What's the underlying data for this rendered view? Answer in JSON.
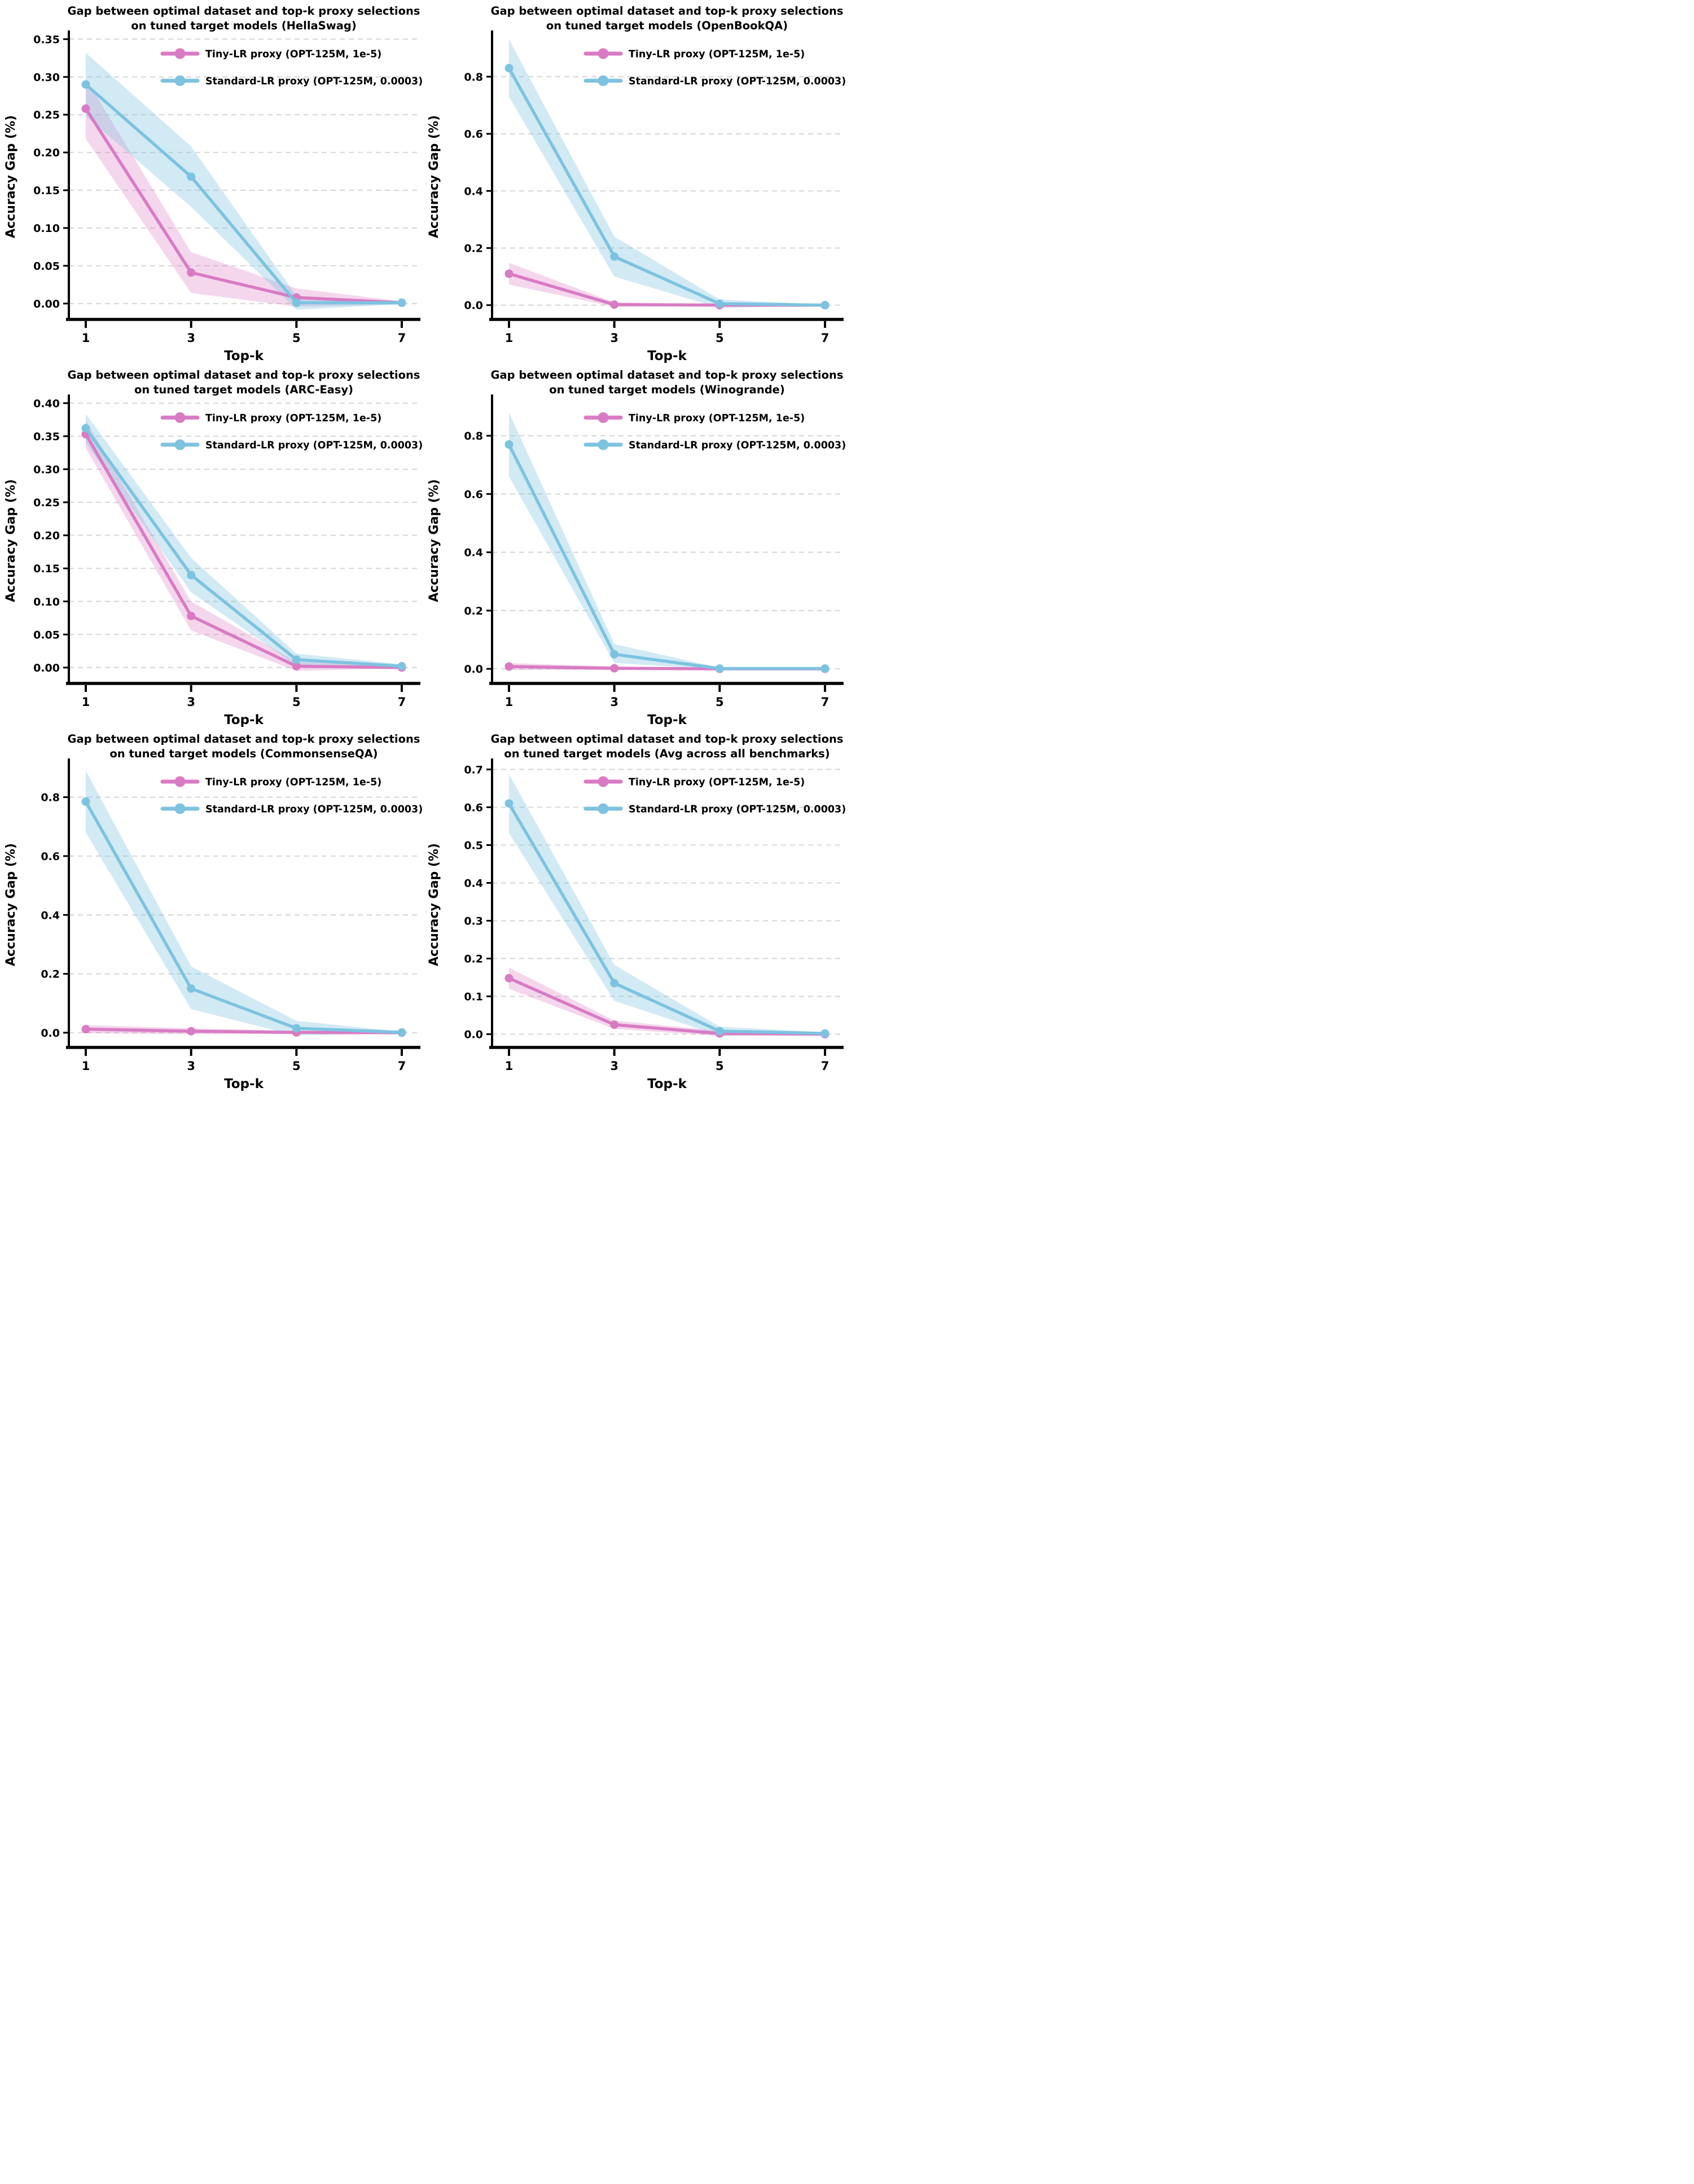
{
  "figure": {
    "background": "#ffffff",
    "x_axis_label": "Top-k",
    "y_axis_label": "Accuracy Gap (%)",
    "x_tick_labels": [
      "1",
      "3",
      "5",
      "7"
    ],
    "grid_color": "#d9d9d9",
    "text_color": "#000000",
    "legend": {
      "items": [
        {
          "label": "Tiny-LR proxy (OPT-125M, 1e-5)",
          "color": "#d97bc4"
        },
        {
          "label": "Standard-LR proxy (OPT-125M, 0.0003)",
          "color": "#7dc3e0"
        }
      ]
    }
  },
  "chart_data": [
    {
      "type": "line",
      "benchmark": "HellaSwag",
      "title": [
        "Gap between optimal dataset and top-k proxy selections",
        "on tuned target models (HellaSwag)"
      ],
      "xlabel": "Top-k",
      "ylabel": "Accuracy Gap (%)",
      "x": [
        1,
        3,
        5,
        7
      ],
      "xtick_labels": [
        "1",
        "3",
        "5",
        "7"
      ],
      "ylim": [
        -0.021,
        0.357
      ],
      "yticks": [
        0.0,
        0.05,
        0.1,
        0.15,
        0.2,
        0.25,
        0.3,
        0.35
      ],
      "ytick_labels": [
        "0.00",
        "0.05",
        "0.10",
        "0.15",
        "0.20",
        "0.25",
        "0.30",
        "0.35"
      ],
      "grid": true,
      "legend_position": "upper center-right",
      "series": [
        {
          "name": "Tiny-LR proxy (OPT-125M, 1e-5)",
          "color": "#d97bc4",
          "values": [
            0.258,
            0.041,
            0.008,
            0.001
          ],
          "band_lower": [
            0.218,
            0.014,
            -0.004,
            -0.001
          ],
          "band_upper": [
            0.298,
            0.068,
            0.02,
            0.003
          ]
        },
        {
          "name": "Standard-LR proxy (OPT-125M, 0.0003)",
          "color": "#7dc3e0",
          "values": [
            0.29,
            0.168,
            0.001,
            0.001
          ],
          "band_lower": [
            0.248,
            0.128,
            -0.008,
            -0.001
          ],
          "band_upper": [
            0.332,
            0.208,
            0.01,
            0.003
          ]
        }
      ]
    },
    {
      "type": "line",
      "benchmark": "OpenBookQA",
      "title": [
        "Gap between optimal dataset and top-k proxy selections",
        "on tuned target models (OpenBookQA)"
      ],
      "xlabel": "Top-k",
      "ylabel": "Accuracy Gap (%)",
      "x": [
        1,
        3,
        5,
        7
      ],
      "xtick_labels": [
        "1",
        "3",
        "5",
        "7"
      ],
      "ylim": [
        -0.05,
        0.95
      ],
      "yticks": [
        0.0,
        0.2,
        0.4,
        0.6,
        0.8
      ],
      "ytick_labels": [
        "0.0",
        "0.2",
        "0.4",
        "0.6",
        "0.8"
      ],
      "grid": true,
      "legend_position": "upper center-right",
      "series": [
        {
          "name": "Tiny-LR proxy (OPT-125M, 1e-5)",
          "color": "#d97bc4",
          "values": [
            0.11,
            0.002,
            0.0,
            0.0
          ],
          "band_lower": [
            0.072,
            -0.006,
            -0.002,
            -0.001
          ],
          "band_upper": [
            0.148,
            0.01,
            0.002,
            0.001
          ]
        },
        {
          "name": "Standard-LR proxy (OPT-125M, 0.0003)",
          "color": "#7dc3e0",
          "values": [
            0.83,
            0.17,
            0.005,
            0.0
          ],
          "band_lower": [
            0.73,
            0.1,
            -0.01,
            -0.002
          ],
          "band_upper": [
            0.93,
            0.24,
            0.02,
            0.002
          ]
        }
      ]
    },
    {
      "type": "line",
      "benchmark": "ARC-Easy",
      "title": [
        "Gap between optimal dataset and top-k proxy selections",
        "on tuned target models (ARC-Easy)"
      ],
      "xlabel": "Top-k",
      "ylabel": "Accuracy Gap (%)",
      "x": [
        1,
        3,
        5,
        7
      ],
      "xtick_labels": [
        "1",
        "3",
        "5",
        "7"
      ],
      "ylim": [
        -0.024,
        0.408
      ],
      "yticks": [
        0.0,
        0.05,
        0.1,
        0.15,
        0.2,
        0.25,
        0.3,
        0.35,
        0.4
      ],
      "ytick_labels": [
        "0.00",
        "0.05",
        "0.10",
        "0.15",
        "0.20",
        "0.25",
        "0.30",
        "0.35",
        "0.40"
      ],
      "grid": true,
      "legend_position": "upper center-right",
      "series": [
        {
          "name": "Tiny-LR proxy (OPT-125M, 1e-5)",
          "color": "#d97bc4",
          "values": [
            0.353,
            0.078,
            0.002,
            0.0
          ],
          "band_lower": [
            0.332,
            0.056,
            -0.005,
            -0.001
          ],
          "band_upper": [
            0.374,
            0.1,
            0.009,
            0.001
          ]
        },
        {
          "name": "Standard-LR proxy (OPT-125M, 0.0003)",
          "color": "#7dc3e0",
          "values": [
            0.362,
            0.14,
            0.012,
            0.002
          ],
          "band_lower": [
            0.34,
            0.114,
            0.003,
            -0.001
          ],
          "band_upper": [
            0.384,
            0.166,
            0.021,
            0.005
          ]
        }
      ]
    },
    {
      "type": "line",
      "benchmark": "Winogrande",
      "title": [
        "Gap between optimal dataset and top-k proxy selections",
        "on tuned target models (Winogrande)"
      ],
      "xlabel": "Top-k",
      "ylabel": "Accuracy Gap (%)",
      "x": [
        1,
        3,
        5,
        7
      ],
      "xtick_labels": [
        "1",
        "3",
        "5",
        "7"
      ],
      "ylim": [
        -0.05,
        0.93
      ],
      "yticks": [
        0.0,
        0.2,
        0.4,
        0.6,
        0.8
      ],
      "ytick_labels": [
        "0.0",
        "0.2",
        "0.4",
        "0.6",
        "0.8"
      ],
      "grid": true,
      "legend_position": "upper center-right",
      "series": [
        {
          "name": "Tiny-LR proxy (OPT-125M, 1e-5)",
          "color": "#d97bc4",
          "values": [
            0.008,
            0.002,
            0.0,
            0.0
          ],
          "band_lower": [
            -0.004,
            -0.004,
            -0.001,
            -0.001
          ],
          "band_upper": [
            0.02,
            0.008,
            0.001,
            0.001
          ]
        },
        {
          "name": "Standard-LR proxy (OPT-125M, 0.0003)",
          "color": "#7dc3e0",
          "values": [
            0.77,
            0.05,
            0.001,
            0.001
          ],
          "band_lower": [
            0.66,
            0.02,
            -0.002,
            -0.001
          ],
          "band_upper": [
            0.88,
            0.085,
            0.004,
            0.003
          ]
        }
      ]
    },
    {
      "type": "line",
      "benchmark": "CommonsenseQA",
      "title": [
        "Gap between optimal dataset and top-k proxy selections",
        "on tuned target models (CommonsenseQA)"
      ],
      "xlabel": "Top-k",
      "ylabel": "Accuracy Gap (%)",
      "x": [
        1,
        3,
        5,
        7
      ],
      "xtick_labels": [
        "1",
        "3",
        "5",
        "7"
      ],
      "ylim": [
        -0.05,
        0.92
      ],
      "yticks": [
        0.0,
        0.2,
        0.4,
        0.6,
        0.8
      ],
      "ytick_labels": [
        "0.0",
        "0.2",
        "0.4",
        "0.6",
        "0.8"
      ],
      "grid": true,
      "legend_position": "upper center-right",
      "series": [
        {
          "name": "Tiny-LR proxy (OPT-125M, 1e-5)",
          "color": "#d97bc4",
          "values": [
            0.012,
            0.005,
            0.001,
            0.0
          ],
          "band_lower": [
            -0.002,
            -0.005,
            -0.004,
            -0.001
          ],
          "band_upper": [
            0.026,
            0.015,
            0.006,
            0.001
          ]
        },
        {
          "name": "Standard-LR proxy (OPT-125M, 0.0003)",
          "color": "#7dc3e0",
          "values": [
            0.785,
            0.15,
            0.015,
            0.001
          ],
          "band_lower": [
            0.68,
            0.08,
            -0.01,
            -0.002
          ],
          "band_upper": [
            0.89,
            0.225,
            0.04,
            0.004
          ]
        }
      ]
    },
    {
      "type": "line",
      "benchmark": "Avg across all benchmarks",
      "title": [
        "Gap between optimal dataset and top-k proxy selections",
        "on tuned target models (Avg across all benchmarks)"
      ],
      "xlabel": "Top-k",
      "ylabel": "Accuracy Gap (%)",
      "x": [
        1,
        3,
        5,
        7
      ],
      "xtick_labels": [
        "1",
        "3",
        "5",
        "7"
      ],
      "ylim": [
        -0.035,
        0.72
      ],
      "yticks": [
        0.0,
        0.1,
        0.2,
        0.3,
        0.4,
        0.5,
        0.6,
        0.7
      ],
      "ytick_labels": [
        "0.0",
        "0.1",
        "0.2",
        "0.3",
        "0.4",
        "0.5",
        "0.6",
        "0.7"
      ],
      "grid": true,
      "legend_position": "upper center-right",
      "series": [
        {
          "name": "Tiny-LR proxy (OPT-125M, 1e-5)",
          "color": "#d97bc4",
          "values": [
            0.148,
            0.025,
            0.002,
            0.0
          ],
          "band_lower": [
            0.12,
            0.014,
            -0.005,
            -0.001
          ],
          "band_upper": [
            0.176,
            0.036,
            0.009,
            0.001
          ]
        },
        {
          "name": "Standard-LR proxy (OPT-125M, 0.0003)",
          "color": "#7dc3e0",
          "values": [
            0.61,
            0.135,
            0.008,
            0.002
          ],
          "band_lower": [
            0.532,
            0.088,
            -0.004,
            -0.001
          ],
          "band_upper": [
            0.688,
            0.183,
            0.02,
            0.005
          ]
        }
      ]
    }
  ]
}
